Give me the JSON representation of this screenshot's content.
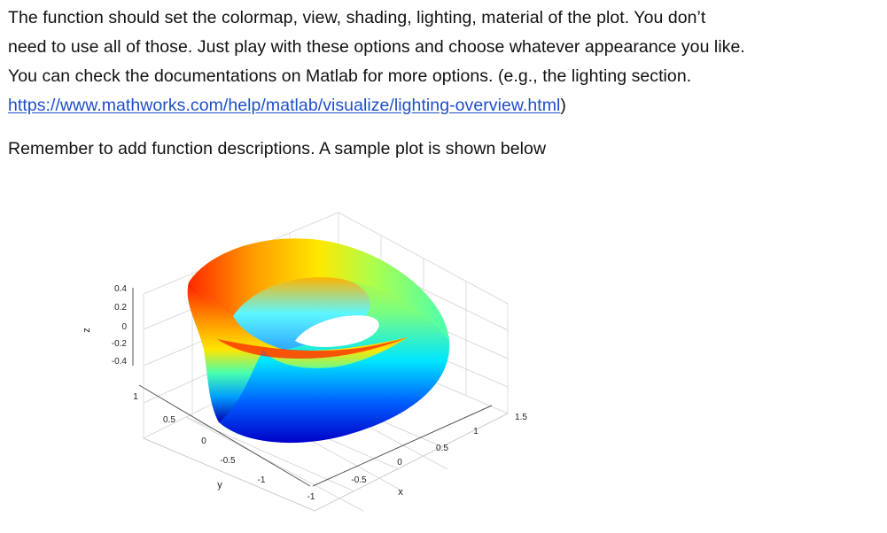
{
  "document": {
    "paragraph1": {
      "line1": "The function should set the colormap, view, shading, lighting, material of the plot. You don’t",
      "line2": "need to use all of those. Just play with these options and choose whatever appearance you like.",
      "line3": "You can check the documentations on Matlab for more options. (e.g., the lighting section.",
      "link_text": "https://www.mathworks.com/help/matlab/visualize/lighting-overview.html",
      "after_link": ")"
    },
    "paragraph2": "Remember to add function descriptions. A sample plot is shown below"
  },
  "figure": {
    "z_axis": {
      "label": "z",
      "ticks": [
        "0.4",
        "0.2",
        "0",
        "-0.2",
        "-0.4"
      ]
    },
    "y_axis": {
      "label": "y",
      "ticks": [
        "1",
        "0.5",
        "0",
        "-0.5",
        "-1"
      ]
    },
    "x_axis": {
      "label": "x",
      "ticks": [
        "-1",
        "-0.5",
        "0",
        "0.5",
        "1",
        "1.5"
      ]
    },
    "colormap": [
      "#00008f",
      "#0000ff",
      "#00b0ff",
      "#00ffff",
      "#a0ff60",
      "#ffff00",
      "#ff8000",
      "#ff0000"
    ]
  }
}
